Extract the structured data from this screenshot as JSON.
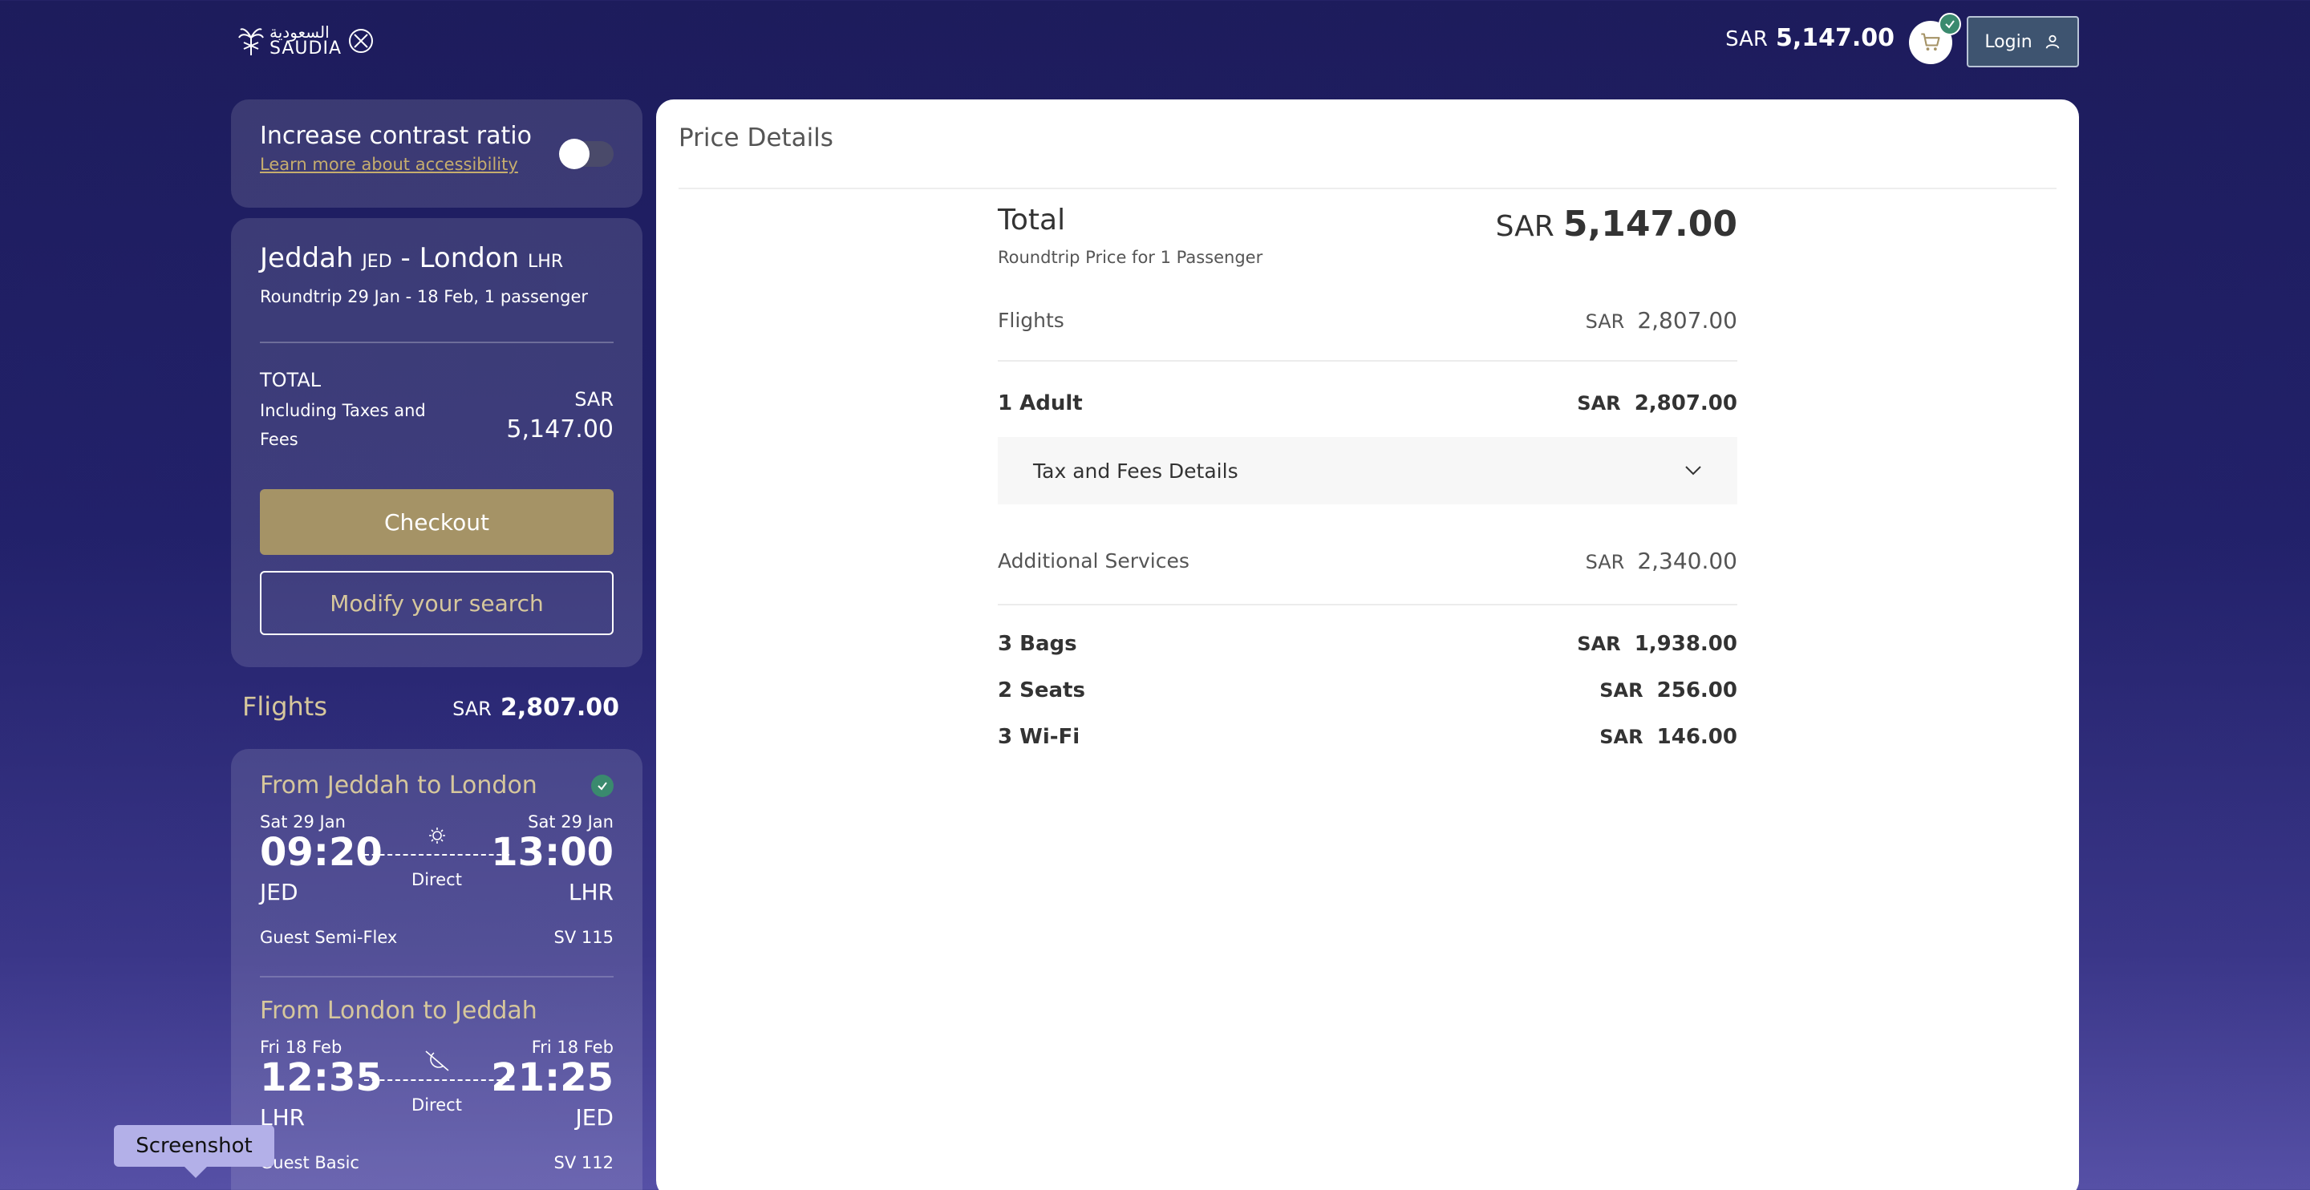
{
  "header": {
    "logo_text": "SAUDIA",
    "logo_arabic": "السعودية",
    "currency": "SAR",
    "total": "5,147.00",
    "login_label": "Login"
  },
  "accessibility": {
    "title": "Increase contrast ratio",
    "link": "Learn more about accessibility"
  },
  "trip": {
    "origin": "Jeddah",
    "origin_code": "JED",
    "separator": "-",
    "destination": "London",
    "destination_code": "LHR",
    "summary": "Roundtrip 29 Jan - 18 Feb, 1 passenger",
    "total_label": "TOTAL",
    "total_sub": "Including Taxes and Fees",
    "currency": "SAR",
    "total": "5,147.00",
    "checkout_label": "Checkout",
    "modify_label": "Modify your search"
  },
  "flights_summary": {
    "label": "Flights",
    "currency": "SAR",
    "amount": "2,807.00"
  },
  "segments": [
    {
      "title": "From Jeddah to London",
      "dep_date": "Sat 29 Jan",
      "dep_time": "09:20",
      "dep_code": "JED",
      "arr_date": "Sat 29 Jan",
      "arr_time": "13:00",
      "arr_code": "LHR",
      "stops": "Direct",
      "fare": "Guest Semi-Flex",
      "flight_no": "SV 115",
      "icon": "sun-icon"
    },
    {
      "title": "From London to Jeddah",
      "dep_date": "Fri 18 Feb",
      "dep_time": "12:35",
      "dep_code": "LHR",
      "arr_date": "Fri 18 Feb",
      "arr_time": "21:25",
      "arr_code": "JED",
      "stops": "Direct",
      "fare": "Guest Basic",
      "flight_no": "SV 112",
      "icon": "moon-icon"
    }
  ],
  "tooltip": "Screenshot",
  "price_details": {
    "title": "Price Details",
    "total_label": "Total",
    "total_sub": "Roundtrip Price for 1 Passenger",
    "currency": "SAR",
    "total": "5,147.00",
    "flights_label": "Flights",
    "flights_amount": "2,807.00",
    "adult_label": "1 Adult",
    "adult_amount": "2,807.00",
    "tax_label": "Tax and Fees Details",
    "additional_label": "Additional Services",
    "additional_amount": "2,340.00",
    "items": [
      {
        "label": "3 Bags",
        "amount": "1,938.00"
      },
      {
        "label": "2 Seats",
        "amount": "256.00"
      },
      {
        "label": "3 Wi-Fi",
        "amount": "146.00"
      }
    ]
  }
}
